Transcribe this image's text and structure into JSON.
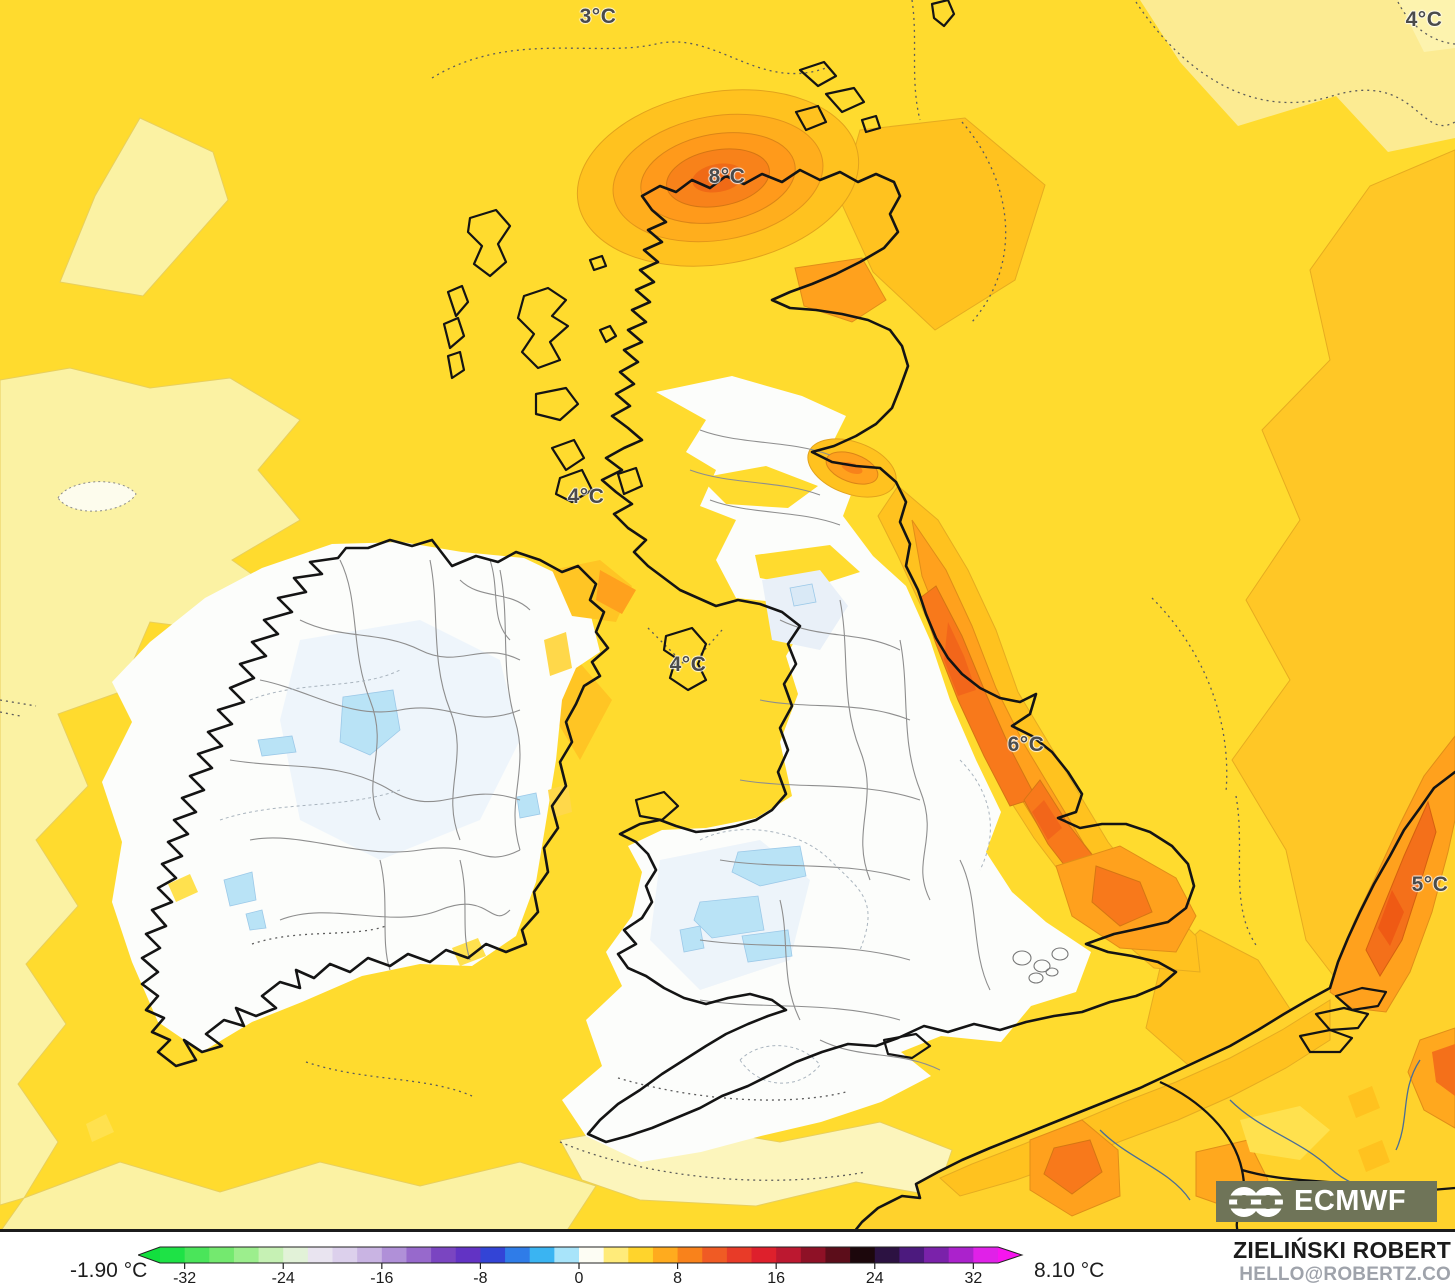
{
  "map": {
    "region_labels": [
      {
        "text": "3°C"
      },
      {
        "text": "4°C"
      },
      {
        "text": "8°C"
      },
      {
        "text": "4°C"
      },
      {
        "text": "4°C"
      },
      {
        "text": "6°C"
      },
      {
        "text": "5°C"
      }
    ],
    "watermark_text": "ECMWF"
  },
  "colorbar": {
    "min_label": "-1.90 °C",
    "max_label": "8.10 °C",
    "ticks": [
      "-32",
      "-24",
      "-16",
      "-8",
      "0",
      "8",
      "16",
      "24",
      "32"
    ],
    "range": [
      -34,
      34
    ],
    "segment_colors": [
      "#1ee246",
      "#4ae55a",
      "#74e96f",
      "#9cee8d",
      "#c6f1b4",
      "#e2f2d8",
      "#e9e4f0",
      "#dcd0ec",
      "#c9b4e3",
      "#b090d8",
      "#9769cc",
      "#7a45c1",
      "#6233c4",
      "#3344d6",
      "#2f7ce8",
      "#3ab4f2",
      "#a8e4fa",
      "#fdfdf4",
      "#ffeb7a",
      "#ffd42c",
      "#ffab1e",
      "#f9821b",
      "#f05b24",
      "#e83b28",
      "#de202c",
      "#bc1830",
      "#8e1126",
      "#5c0d1a",
      "#1c070c",
      "#2c1242",
      "#4c1a7e",
      "#7a22aa",
      "#ab22cc",
      "#e021e8"
    ],
    "left_arrow_color": "#12df3e",
    "right_arrow_color": "#f715ef"
  },
  "attribution": {
    "name": "ZIELIŃSKI ROBERT",
    "email": "HELLO@ROBERTZ.CO"
  },
  "palette": {
    "sea_yellow": "#ffdb2e",
    "pale_yellow": "#fbf2a3",
    "gold": "#ffc21f",
    "orange": "#ffa11d",
    "dark_orange": "#f8791b",
    "hot_core": "#f2661a",
    "near_zero_white": "#fcfdfb",
    "cool_blue": "#b9e3f6",
    "coastline_black": "#141414",
    "admin_gray": "#8e8e8e",
    "watermark_bg": "#6f7458"
  }
}
